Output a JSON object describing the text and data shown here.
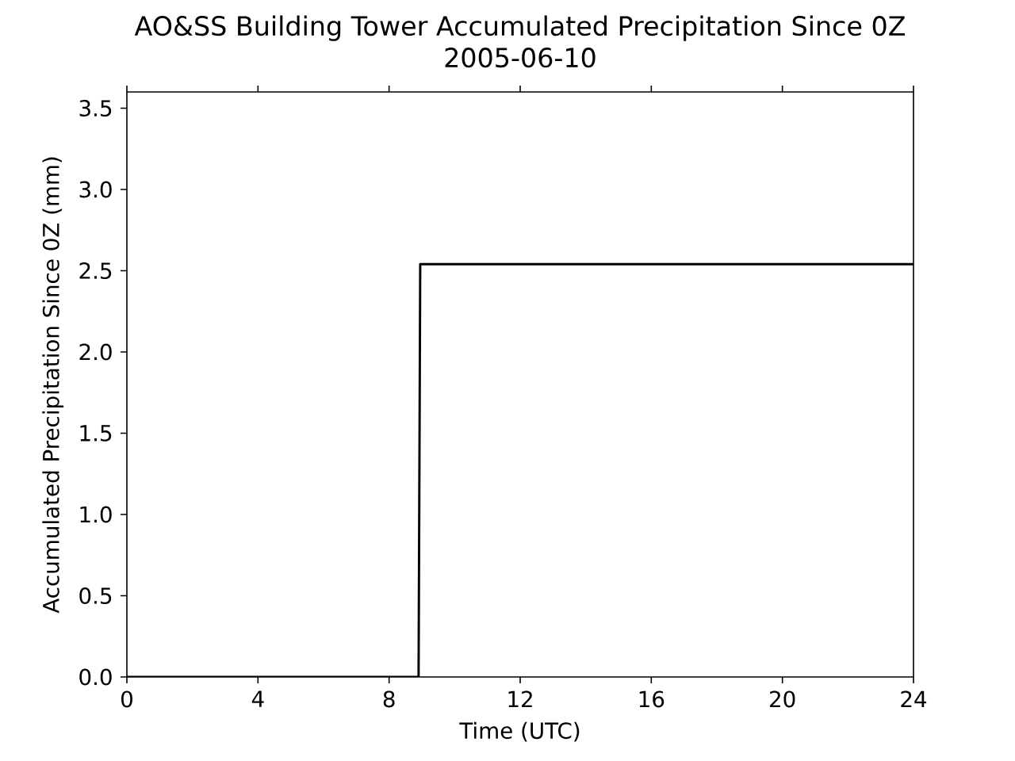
{
  "chart_data": {
    "type": "line",
    "title": "AO&SS Building Tower Accumulated Precipitation Since 0Z",
    "subtitle": "2005-06-10",
    "xlabel": "Time (UTC)",
    "ylabel": "Accumulated Precipitation Since 0Z (mm)",
    "x": [
      0,
      8.9,
      8.95,
      24
    ],
    "series": [
      {
        "color": "#000000",
        "values": [
          0,
          0,
          2.54,
          2.54
        ]
      }
    ],
    "xlim": [
      0,
      24
    ],
    "ylim": [
      0,
      3.6
    ],
    "xticks": [
      0,
      4,
      8,
      12,
      16,
      20,
      24
    ],
    "yticks": [
      {
        "value": 0,
        "label": "0.0"
      },
      {
        "value": 0.5,
        "label": "0.5"
      },
      {
        "value": 1,
        "label": "1.0"
      },
      {
        "value": 1.5,
        "label": "1.5"
      },
      {
        "value": 2,
        "label": "2.0"
      },
      {
        "value": 2.5,
        "label": "2.5"
      },
      {
        "value": 3,
        "label": "3.0"
      },
      {
        "value": 3.5,
        "label": "3.5"
      }
    ],
    "grid": false
  }
}
